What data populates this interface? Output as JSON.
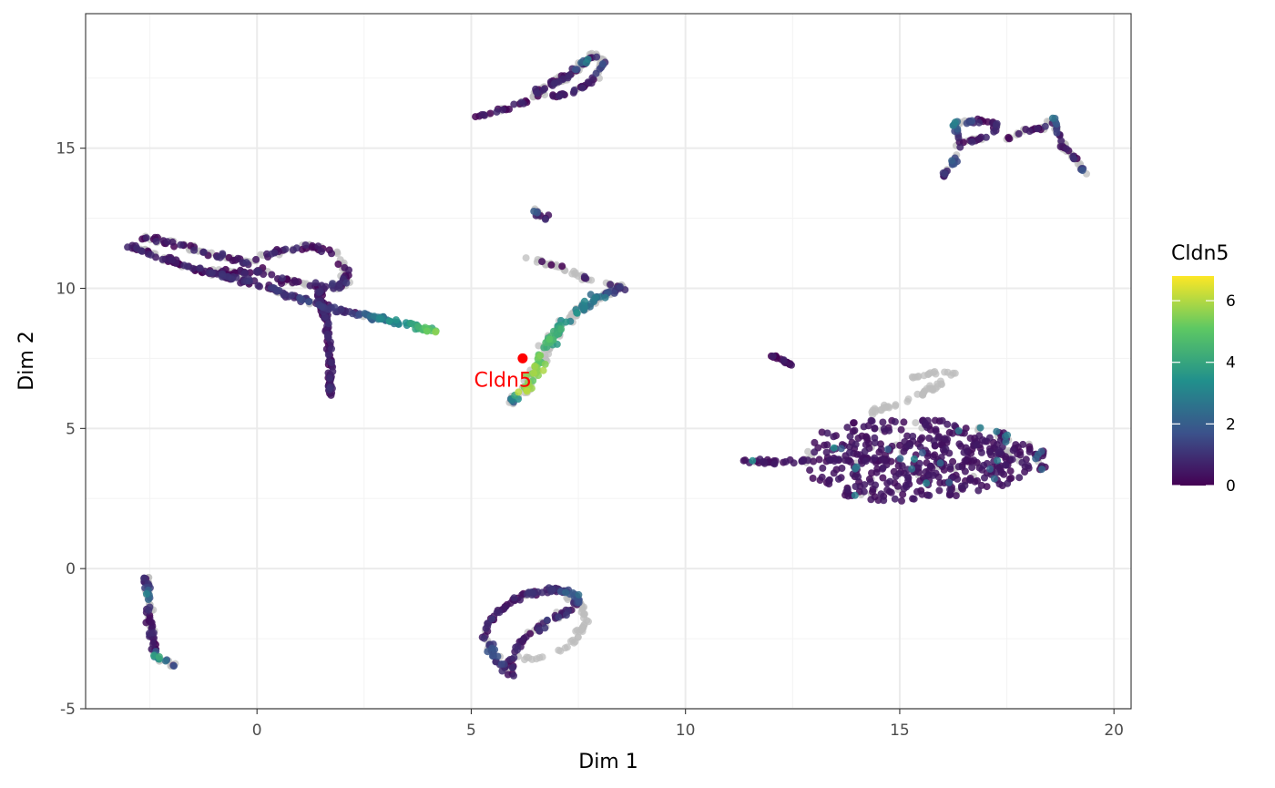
{
  "chart_data": {
    "type": "scatter",
    "xlabel": "Dim 1",
    "ylabel": "Dim 2",
    "xlim": [
      -4,
      20.4
    ],
    "ylim": [
      -5.0,
      19.8
    ],
    "x_ticks": [
      0,
      5,
      10,
      15,
      20
    ],
    "y_ticks": [
      -5,
      0,
      5,
      10,
      15
    ],
    "x_tick_labels": [
      "0",
      "5",
      "10",
      "15",
      "20"
    ],
    "y_tick_labels": [
      "-5",
      "0",
      "5",
      "10",
      "15"
    ],
    "grid": true,
    "theme": "black-and-white panel",
    "color_by": "Cldn5",
    "legend": {
      "title": "Cldn5",
      "position": "right",
      "range": [
        0,
        6.8
      ],
      "ticks": [
        0,
        2,
        4,
        6
      ],
      "tick_labels": [
        "0",
        "2",
        "4",
        "6"
      ],
      "colors": [
        "#440154",
        "#3B528B",
        "#21908C",
        "#5DC863",
        "#FDE725"
      ]
    },
    "na_color": "#bdbdbd",
    "annotation": {
      "label": "Cldn5",
      "x": 6.2,
      "y": 7.5,
      "color": "#ff0000"
    },
    "clusters": [
      {
        "path": [
          [
            -2.9,
            11.45
          ],
          [
            -2.2,
            11.1
          ],
          [
            -1.5,
            10.7
          ],
          [
            -0.8,
            10.45
          ],
          [
            0,
            10.15
          ],
          [
            0.6,
            9.85
          ],
          [
            1.2,
            9.55
          ],
          [
            1.6,
            9.35
          ],
          [
            2.3,
            9.1
          ],
          [
            2.8,
            8.95
          ],
          [
            3.3,
            8.8
          ],
          [
            3.8,
            8.6
          ],
          [
            4.2,
            8.4
          ]
        ],
        "spread": 0.14,
        "count": 230,
        "values_mean": [
          0.3,
          0.4,
          0.3,
          0.5,
          0.6,
          0.8,
          1.2,
          0.6,
          0.9,
          2.5,
          3.2,
          4.0,
          5.2
        ],
        "frac_gray": 0.18
      },
      {
        "path": [
          [
            -2.7,
            11.85
          ],
          [
            -2,
            11.6
          ],
          [
            -1,
            11.2
          ],
          [
            -0.2,
            10.9
          ],
          [
            0.5,
            11.3
          ],
          [
            1.2,
            11.5
          ],
          [
            1.9,
            11.2
          ],
          [
            2.1,
            10.6
          ],
          [
            2.0,
            10.05
          ],
          [
            1.3,
            10.1
          ],
          [
            0.6,
            10.3
          ],
          [
            0.2,
            10.6
          ],
          [
            -0.4,
            10.55
          ],
          [
            -1.2,
            10.6
          ]
        ],
        "spread": 0.16,
        "count": 220,
        "values_mean": [
          0.2,
          0.2,
          0.3,
          0.4,
          0.3,
          0.3,
          0.4,
          0.5,
          0.6,
          0.6,
          0.4,
          0.3,
          0.3,
          0.3
        ],
        "frac_gray": 0.45
      },
      {
        "path": [
          [
            1.45,
            9.9
          ],
          [
            1.6,
            8.9
          ],
          [
            1.7,
            8.0
          ],
          [
            1.7,
            7.2
          ],
          [
            1.7,
            6.2
          ]
        ],
        "spread": 0.11,
        "count": 90,
        "values_mean": [
          0.4,
          0.4,
          0.3,
          0.4,
          0.6
        ],
        "frac_gray": 0.0
      },
      {
        "path": [
          [
            5.1,
            16.1
          ],
          [
            5.6,
            16.3
          ],
          [
            6.2,
            16.6
          ],
          [
            6.8,
            17.1
          ],
          [
            7.4,
            17.7
          ],
          [
            7.9,
            18.3
          ],
          [
            8.1,
            18.1
          ],
          [
            7.9,
            17.5
          ],
          [
            7.5,
            17.1
          ],
          [
            7.0,
            16.85
          ],
          [
            6.5,
            17.0
          ],
          [
            7.2,
            17.6
          ],
          [
            7.9,
            18.4
          ]
        ],
        "spread": 0.1,
        "count": 150,
        "values_mean": [
          0.4,
          0.3,
          0.3,
          0.4,
          0.3,
          0.4,
          1.5,
          0.4,
          0.3,
          0.6,
          0.3,
          0.4,
          3.5
        ],
        "frac_gray": 0.35
      },
      {
        "path": [
          [
            6.5,
            12.85
          ],
          [
            6.55,
            12.6
          ],
          [
            6.7,
            12.5
          ],
          [
            6.8,
            12.7
          ]
        ],
        "spread": 0.09,
        "count": 16,
        "values_mean": [
          3.2,
          0.5,
          0.4,
          0.3
        ],
        "frac_gray": 0.4
      },
      {
        "path": [
          [
            6.3,
            11.1
          ],
          [
            6.8,
            10.9
          ],
          [
            7.3,
            10.6
          ],
          [
            7.8,
            10.3
          ],
          [
            8.3,
            10.1
          ],
          [
            8.6,
            10.05
          ]
        ],
        "spread": 0.1,
        "count": 40,
        "values_mean": [
          0.3,
          0.3,
          0.4,
          0.5,
          0.6,
          0.4
        ],
        "frac_gray": 0.85
      },
      {
        "path": [
          [
            8.5,
            10.0
          ],
          [
            8.0,
            9.7
          ],
          [
            7.6,
            9.3
          ],
          [
            7.2,
            8.8
          ],
          [
            6.9,
            8.3
          ],
          [
            6.7,
            7.8
          ],
          [
            6.6,
            7.3
          ],
          [
            6.4,
            6.8
          ],
          [
            6.2,
            6.2
          ],
          [
            5.9,
            5.9
          ]
        ],
        "spread": 0.22,
        "count": 190,
        "values_mean": [
          0.6,
          2.2,
          3.0,
          3.5,
          4.0,
          4.6,
          5.2,
          5.5,
          5.8,
          1.0
        ],
        "frac_gray": 0.45
      },
      {
        "path": [
          [
            -2.6,
            -0.3
          ],
          [
            -2.55,
            -0.9
          ],
          [
            -2.5,
            -1.7
          ],
          [
            -2.45,
            -2.4
          ],
          [
            -2.4,
            -2.9
          ],
          [
            -2.35,
            -3.2
          ],
          [
            -2.1,
            -3.3
          ],
          [
            -1.9,
            -3.5
          ]
        ],
        "spread": 0.12,
        "count": 110,
        "values_mean": [
          0.4,
          2.5,
          0.3,
          0.3,
          0.4,
          4.5,
          2.0,
          1.2
        ],
        "frac_gray": 0.6
      },
      {
        "path": [
          [
            5.3,
            -2.3
          ],
          [
            5.6,
            -1.5
          ],
          [
            6.2,
            -0.95
          ],
          [
            7.0,
            -0.75
          ],
          [
            7.5,
            -0.9
          ],
          [
            7.4,
            -1.4
          ],
          [
            6.8,
            -1.9
          ],
          [
            6.3,
            -2.4
          ],
          [
            6.0,
            -3.0
          ],
          [
            5.9,
            -3.8
          ],
          [
            5.5,
            -3.0
          ],
          [
            5.3,
            -2.3
          ]
        ],
        "spread": 0.15,
        "count": 170,
        "values_mean": [
          1.0,
          0.4,
          0.5,
          0.6,
          2.2,
          0.4,
          0.8,
          0.3,
          0.4,
          0.3,
          1.5,
          0.6
        ],
        "frac_gray": 0.15
      },
      {
        "path": [
          [
            6.3,
            -3.2
          ],
          [
            6.8,
            -3.1
          ],
          [
            7.4,
            -2.6
          ],
          [
            7.7,
            -1.9
          ],
          [
            7.6,
            -1.3
          ],
          [
            7.2,
            -1.0
          ]
        ],
        "spread": 0.12,
        "count": 50,
        "values_mean": [
          0.3,
          0.3,
          0.3,
          0.3,
          0.3,
          0.3
        ],
        "frac_gray": 1.0
      },
      {
        "path": [
          [
            12.0,
            7.6
          ],
          [
            12.2,
            7.5
          ],
          [
            12.5,
            7.25
          ]
        ],
        "spread": 0.06,
        "count": 18,
        "values_mean": [
          0.2,
          0.2,
          0.2
        ],
        "frac_gray": 0.0
      },
      {
        "path": [
          [
            16.0,
            14.0
          ],
          [
            16.3,
            14.6
          ],
          [
            16.4,
            15.3
          ],
          [
            16.3,
            15.9
          ],
          [
            16.8,
            16.0
          ],
          [
            17.3,
            15.9
          ],
          [
            17.1,
            15.5
          ],
          [
            16.8,
            15.3
          ],
          [
            16.5,
            15.2
          ]
        ],
        "spread": 0.09,
        "count": 80,
        "values_mean": [
          0.4,
          1.8,
          0.3,
          2.5,
          0.3,
          0.3,
          0.4,
          0.3,
          0.3
        ],
        "frac_gray": 0.3
      },
      {
        "path": [
          [
            17.5,
            15.3
          ],
          [
            17.9,
            15.6
          ],
          [
            18.3,
            15.7
          ],
          [
            18.5,
            15.9
          ],
          [
            18.6,
            16.1
          ],
          [
            18.7,
            15.4
          ],
          [
            18.9,
            14.9
          ],
          [
            19.1,
            14.6
          ],
          [
            19.3,
            14.1
          ]
        ],
        "spread": 0.09,
        "count": 75,
        "values_mean": [
          0.3,
          0.3,
          0.3,
          0.5,
          2.8,
          0.4,
          0.3,
          0.4,
          1.5
        ],
        "frac_gray": 0.45
      },
      {
        "path": [
          [
            14.3,
            5.6
          ],
          [
            15.0,
            5.9
          ],
          [
            15.6,
            6.3
          ],
          [
            16.0,
            6.7
          ],
          [
            16.3,
            6.95
          ],
          [
            15.8,
            7.0
          ],
          [
            15.2,
            6.8
          ]
        ],
        "spread": 0.13,
        "count": 55,
        "values_mean": [
          0.3,
          0.3,
          0.3,
          0.3,
          0.3,
          0.3,
          0.3
        ],
        "frac_gray": 1.0
      },
      {
        "path": [
          [
            17.2,
            4.1
          ],
          [
            17.5,
            4.2
          ],
          [
            17.6,
            4.0
          ]
        ],
        "spread": 0.1,
        "count": 12,
        "values_mean": [
          0.3,
          0.3,
          0.3
        ],
        "frac_gray": 1.0
      },
      {
        "region": "blob",
        "center": [
          15.6,
          3.9
        ],
        "half_width": 2.9,
        "half_height": 1.45,
        "tail_to": [
          11.3,
          3.8
        ],
        "count": 520,
        "values_mean": [
          0.35
        ],
        "frac_gray": 0.08
      }
    ]
  }
}
